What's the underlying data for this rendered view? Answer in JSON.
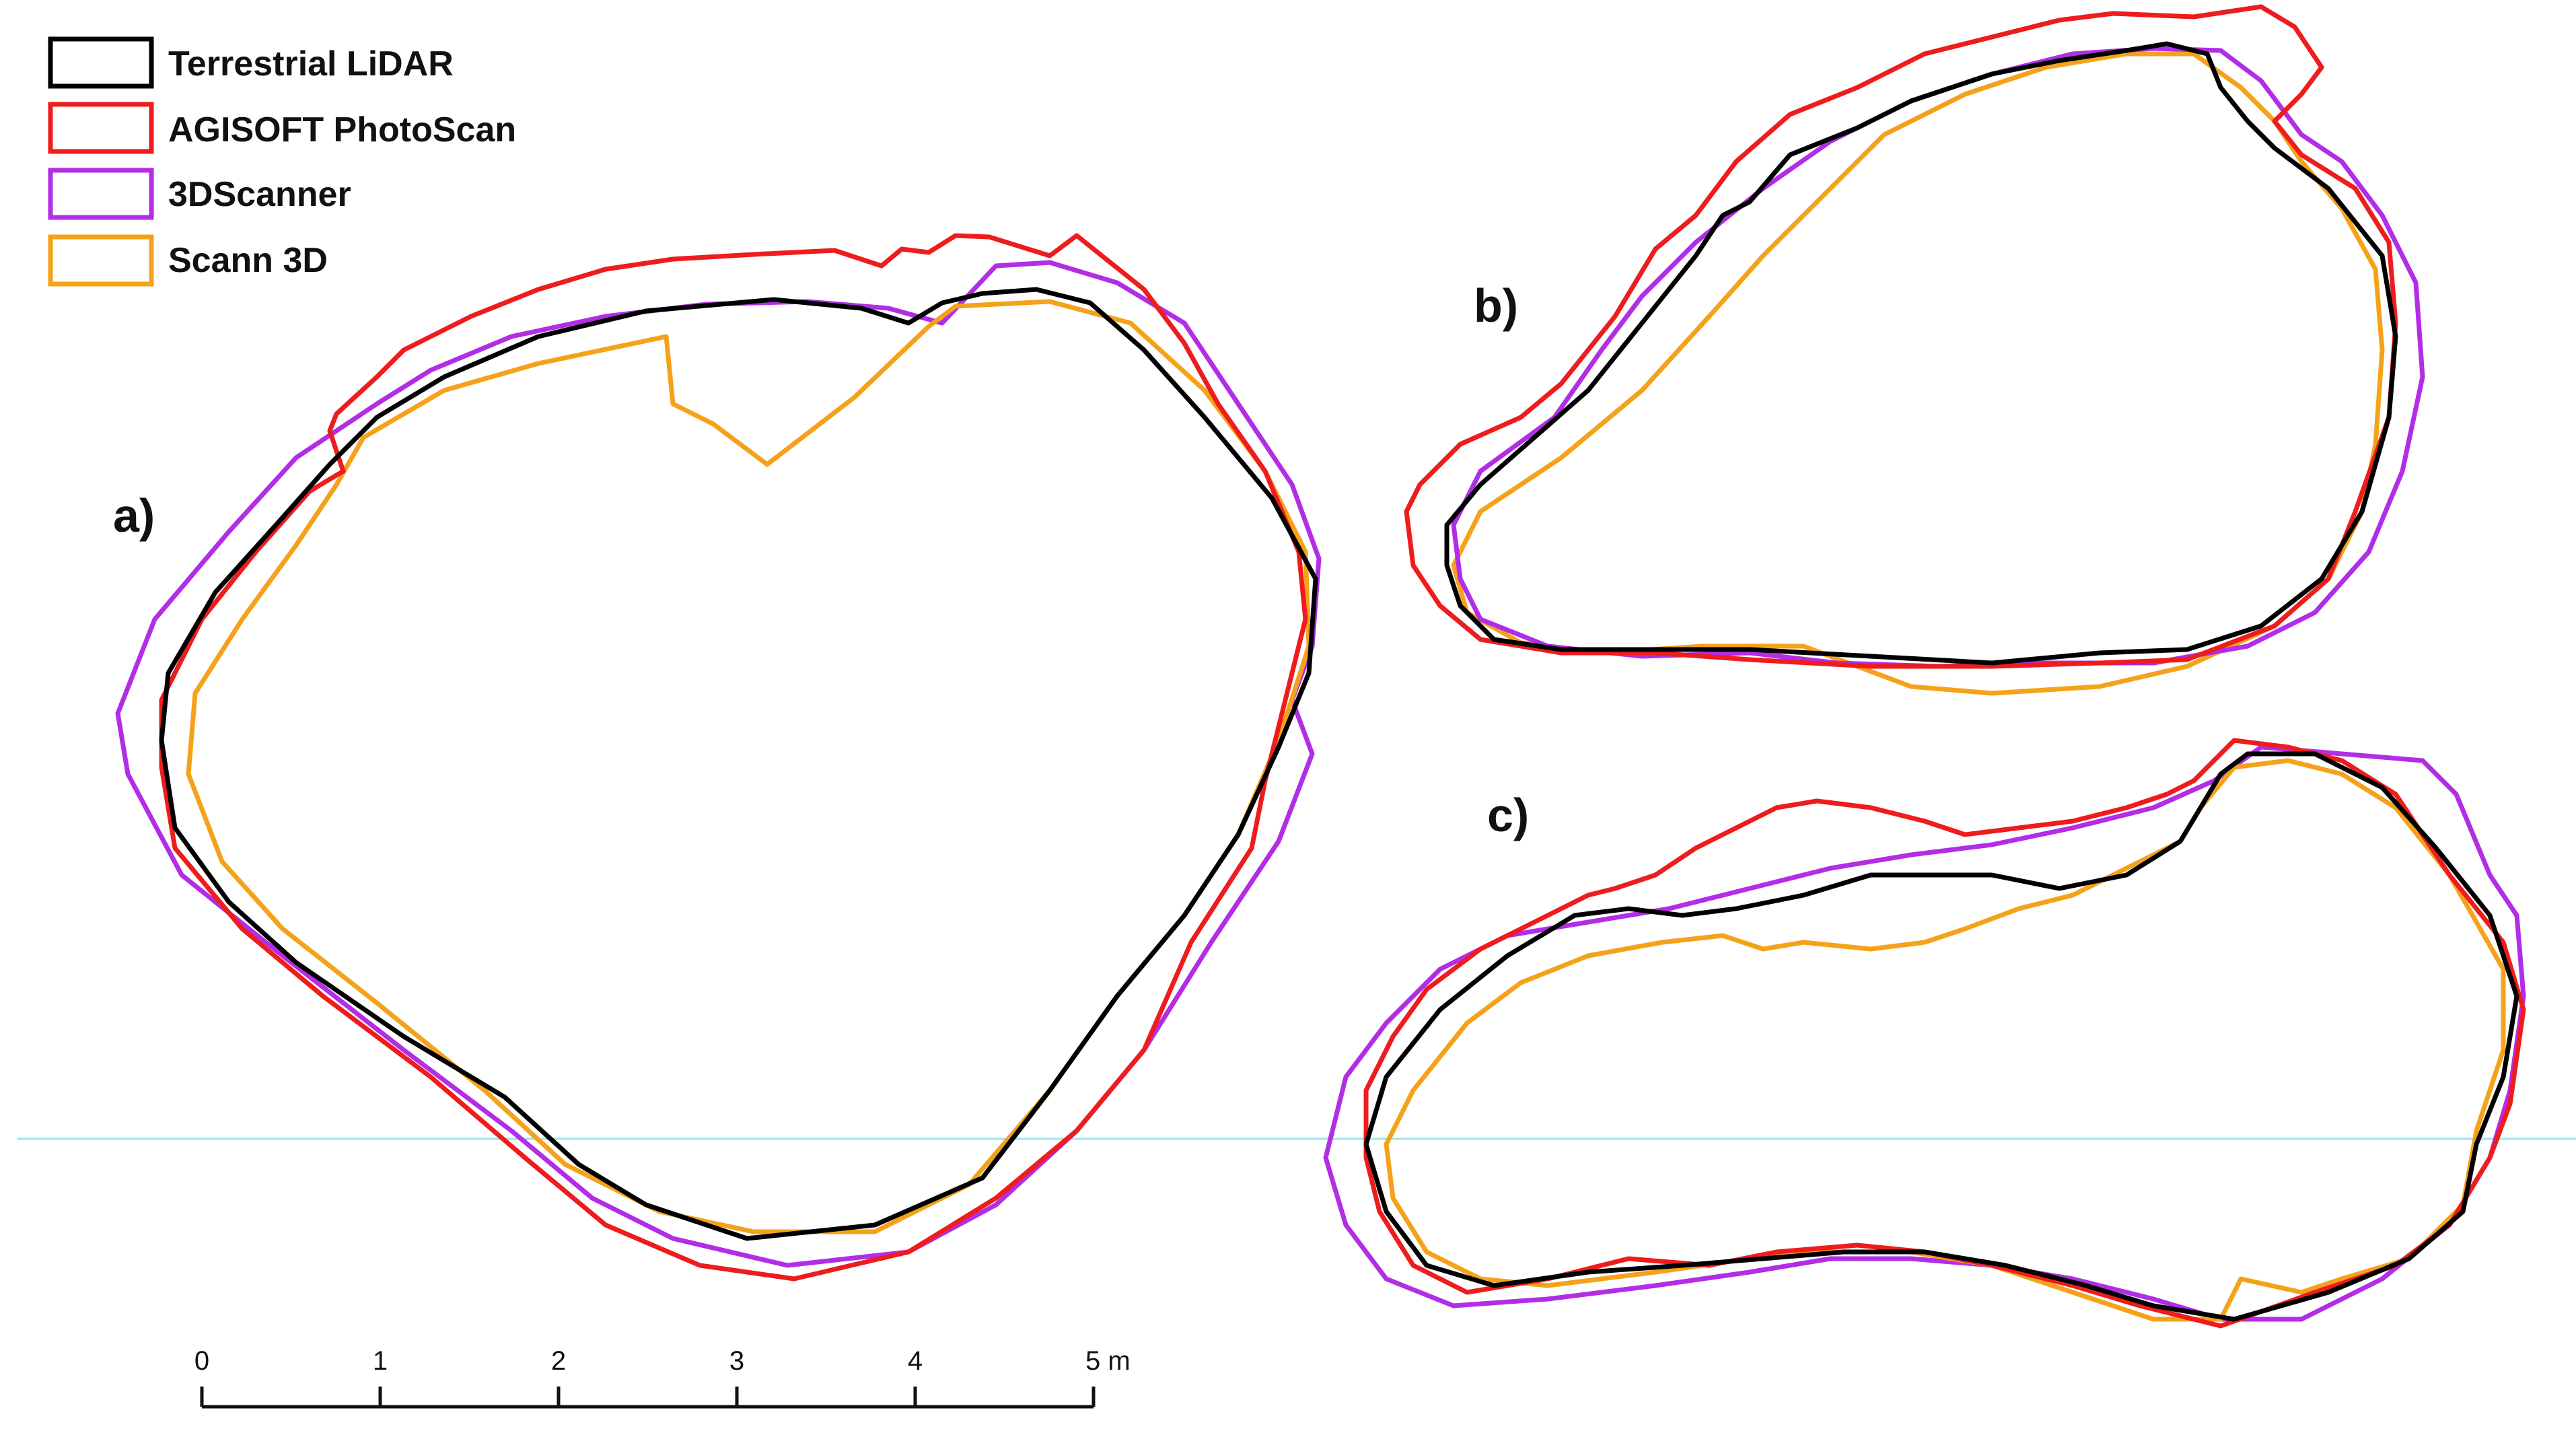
{
  "legend": {
    "items": [
      {
        "label": "Terrestrial LiDAR",
        "color": "#000000"
      },
      {
        "label": "AGISOFT PhotoScan",
        "color": "#ee1c1c"
      },
      {
        "label": "3DScanner",
        "color": "#b22de6"
      },
      {
        "label": "Scann 3D",
        "color": "#f5a21b"
      }
    ]
  },
  "panels": {
    "a": {
      "label": "a)"
    },
    "b": {
      "label": "b)"
    },
    "c": {
      "label": "c)"
    }
  },
  "scale_bar": {
    "ticks": [
      "0",
      "1",
      "2",
      "3",
      "4",
      "5 m"
    ]
  },
  "colors": {
    "reference_line": "#9fe3ef",
    "background": "#ffffff"
  }
}
